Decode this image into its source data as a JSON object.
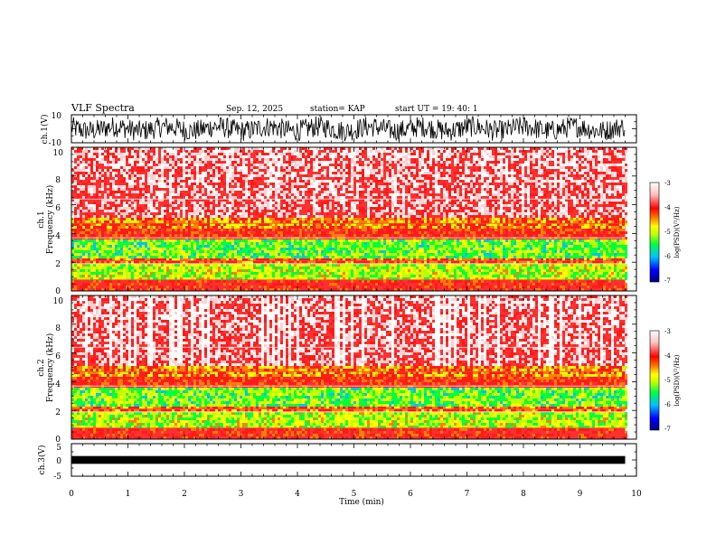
{
  "header": {
    "title": "VLF Spectra",
    "date": "Sep. 12, 2025",
    "station": "station= KAP",
    "start": "start  UT  =   19: 40: 1"
  },
  "colors": {
    "background": "#ffffff",
    "trace": "#000000",
    "colormap": [
      "#000080",
      "#0000ff",
      "#00c0ff",
      "#00ff40",
      "#c0ff00",
      "#ffff00",
      "#ff8000",
      "#ff0000",
      "#ffc0c0",
      "#ffffff"
    ]
  },
  "chart_data": [
    {
      "type": "line",
      "name": "ch1-waveform",
      "ylabel": "ch.1(V)",
      "ylim": [
        -10,
        10
      ],
      "yticks": [
        "10",
        "-10"
      ],
      "xlim": [
        0,
        10
      ],
      "trace_extent_min": 9.8
    },
    {
      "type": "heatmap",
      "name": "ch1-spectrogram",
      "ylabel": "ch.1\nFrequency  (kHz)",
      "ylim": [
        0,
        10
      ],
      "yticks": [
        "0",
        "2",
        "4",
        "6",
        "8",
        "10"
      ],
      "xlim": [
        0,
        10
      ],
      "data_extent_min": 9.8,
      "colorbar": {
        "label": "log(PSD)(V²/Hz)",
        "ticks": [
          "-3",
          "-4",
          "-5",
          "-6",
          "-7"
        ],
        "range": [
          -7,
          -3
        ]
      }
    },
    {
      "type": "heatmap",
      "name": "ch2-spectrogram",
      "ylabel": "ch.2\nFrequency  (kHz)",
      "ylim": [
        0,
        10
      ],
      "yticks": [
        "0",
        "2",
        "4",
        "6",
        "8",
        "10"
      ],
      "xlim": [
        0,
        10
      ],
      "data_extent_min": 9.8,
      "colorbar": {
        "label": "log(PSD)(V²/Hz)",
        "ticks": [
          "-3",
          "-4",
          "-5",
          "-6",
          "-7"
        ],
        "range": [
          -7,
          -3
        ]
      }
    },
    {
      "type": "line",
      "name": "ch3-waveform",
      "ylabel": "ch.3(V)",
      "ylim": [
        -5,
        5
      ],
      "yticks": [
        "5",
        "0",
        "-5"
      ],
      "xlim": [
        0,
        10
      ],
      "trace_extent_min": 9.8,
      "xlabel": "Time  (min)",
      "xticks": [
        "0",
        "1",
        "2",
        "3",
        "4",
        "5",
        "6",
        "7",
        "8",
        "9",
        "10"
      ]
    }
  ]
}
